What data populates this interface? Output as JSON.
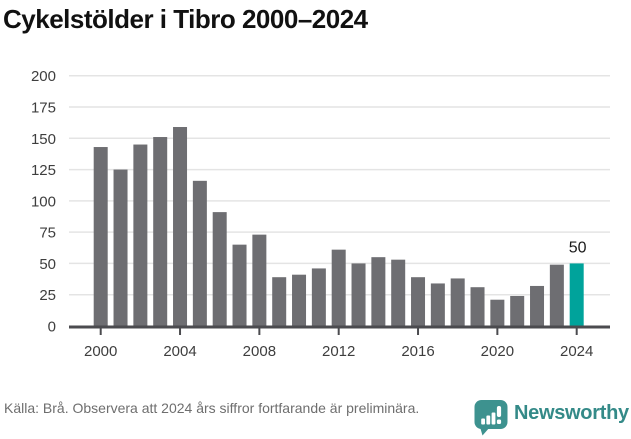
{
  "title": "Cykelstölder i Tibro 2000–2024",
  "footer": {
    "source_note": "Källa: Brå. Observera att 2024 års siffror fortfarande är preliminära."
  },
  "logo": {
    "text": "Newsworthy",
    "icon": "newsworthy-speech-bubble-bars-icon",
    "color": "#348a88",
    "icon_color": "#3d928f"
  },
  "chart_data": {
    "type": "bar",
    "title": "Cykelstölder i Tibro 2000–2024",
    "x": [
      2000,
      2001,
      2002,
      2003,
      2004,
      2005,
      2006,
      2007,
      2008,
      2009,
      2010,
      2011,
      2012,
      2013,
      2014,
      2015,
      2016,
      2017,
      2018,
      2019,
      2020,
      2021,
      2022,
      2023,
      2024
    ],
    "values": [
      143,
      125,
      145,
      151,
      159,
      116,
      91,
      65,
      73,
      39,
      41,
      46,
      61,
      50,
      55,
      53,
      39,
      34,
      38,
      31,
      21,
      24,
      32,
      49,
      50
    ],
    "highlight_year": 2024,
    "annotation": {
      "year": 2024,
      "label": "50"
    },
    "xlabel": "",
    "ylabel": "",
    "ylim": [
      0,
      200
    ],
    "yticks": [
      0,
      25,
      50,
      75,
      100,
      125,
      150,
      175,
      200
    ],
    "xticks": [
      2000,
      2004,
      2008,
      2012,
      2016,
      2020,
      2024
    ],
    "grid": true,
    "legend": "none",
    "colors": {
      "bar": "#6e6e72",
      "highlight": "#00a39b",
      "grid": "#e4e4e4",
      "axis": "#4b4b4f",
      "tick_label": "#3e3e3e",
      "annotation": "#1a1a1a"
    }
  }
}
